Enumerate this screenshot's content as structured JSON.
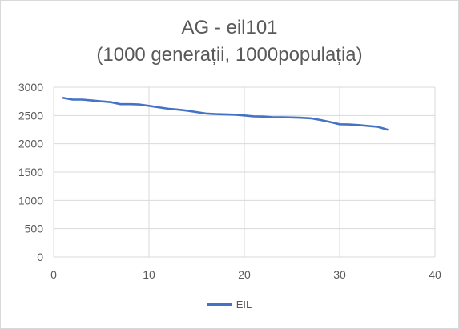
{
  "chart_data": {
    "type": "line",
    "title": "AG - eil101",
    "subtitle": "(1000 generații, 1000populația)",
    "xlim": [
      0,
      40
    ],
    "ylim": [
      0,
      3000
    ],
    "xticks": [
      0,
      10,
      20,
      30,
      40
    ],
    "yticks": [
      0,
      500,
      1000,
      1500,
      2000,
      2500,
      3000
    ],
    "grid": true,
    "legend_position": "bottom",
    "series": [
      {
        "name": "EIL",
        "color": "#4472c4",
        "x": [
          1,
          2,
          3,
          4,
          5,
          6,
          7,
          8,
          9,
          10,
          11,
          12,
          13,
          14,
          15,
          16,
          17,
          18,
          19,
          20,
          21,
          22,
          23,
          24,
          25,
          26,
          27,
          28,
          29,
          30,
          31,
          32,
          33,
          34,
          35
        ],
        "y": [
          2810,
          2780,
          2780,
          2765,
          2750,
          2735,
          2700,
          2700,
          2695,
          2670,
          2645,
          2620,
          2605,
          2585,
          2560,
          2535,
          2525,
          2520,
          2515,
          2500,
          2485,
          2480,
          2470,
          2470,
          2465,
          2460,
          2450,
          2420,
          2385,
          2345,
          2340,
          2330,
          2315,
          2300,
          2250
        ]
      }
    ]
  }
}
